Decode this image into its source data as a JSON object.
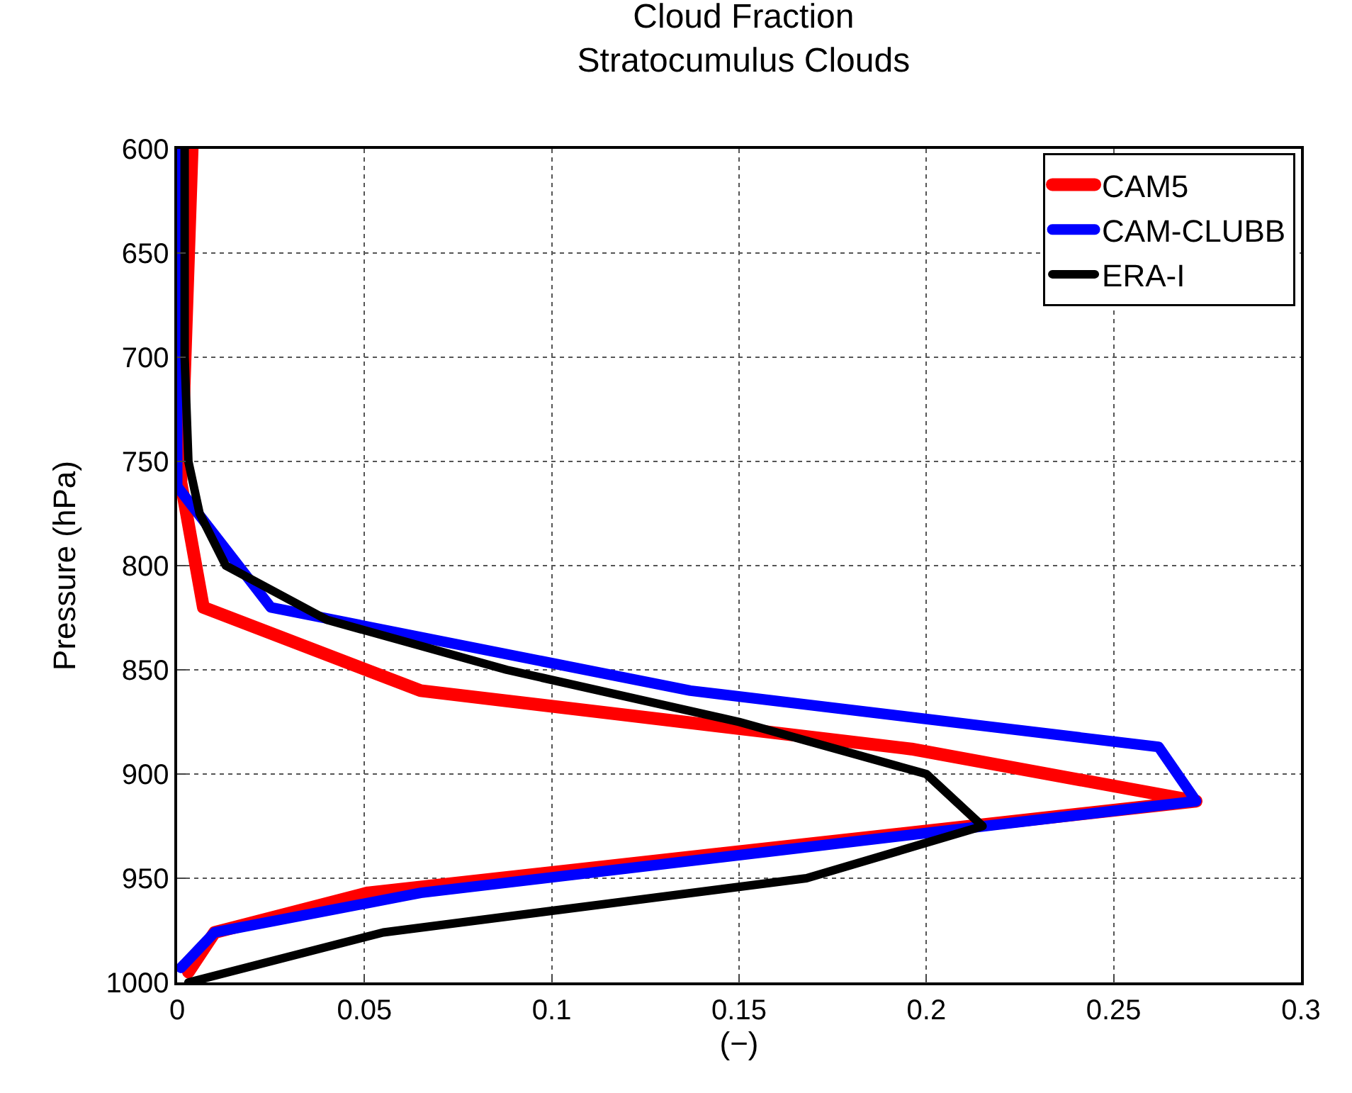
{
  "chart_data": {
    "type": "line",
    "title": "Cloud Fraction",
    "subtitle": "Stratocumulus Clouds",
    "xlabel": "(−)",
    "ylabel": "Pressure (hPa)",
    "xlim": [
      0,
      0.3
    ],
    "xticks": [
      0,
      0.05,
      0.1,
      0.15,
      0.2,
      0.25,
      0.3
    ],
    "ylim": [
      1000,
      600
    ],
    "yticks": [
      600,
      650,
      700,
      750,
      800,
      850,
      900,
      950,
      1000
    ],
    "grid": true,
    "legend": "top right",
    "line_style": "solid",
    "marker": "none",
    "series": [
      {
        "name": "CAM5",
        "color": "#ff0000",
        "x": [
          0.004,
          0.001,
          0.007,
          0.065,
          0.196,
          0.272,
          0.051,
          0.01,
          0.003
        ],
        "values": [
          600,
          760,
          820,
          860,
          888,
          913,
          957,
          976,
          995
        ]
      },
      {
        "name": "CAM-CLUBB",
        "color": "#0000ff",
        "x": [
          0.001,
          0.0,
          0.0,
          0.025,
          0.137,
          0.262,
          0.272,
          0.065,
          0.01,
          0.001
        ],
        "values": [
          600,
          700,
          762,
          820,
          860,
          887,
          913,
          957,
          976,
          993
        ]
      },
      {
        "name": "ERA-I",
        "color": "#000000",
        "x": [
          0.002,
          0.002,
          0.003,
          0.006,
          0.013,
          0.04,
          0.088,
          0.15,
          0.2,
          0.215,
          0.168,
          0.055,
          0.003
        ],
        "values": [
          600,
          700,
          750,
          775,
          800,
          826,
          850,
          875,
          900,
          925,
          950,
          976,
          1000
        ]
      }
    ]
  }
}
